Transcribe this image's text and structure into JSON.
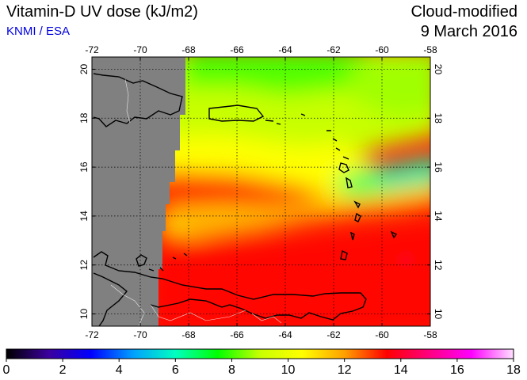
{
  "header": {
    "title": "Vitamin-D UV dose (kJ/m2)",
    "provider": "KNMI / ESA",
    "product": "Cloud-modified",
    "date": "9 March 2016"
  },
  "map": {
    "lon_ticks": [
      "-72",
      "-70",
      "-68",
      "-66",
      "-64",
      "-62",
      "-60",
      "-58"
    ],
    "lat_ticks": [
      "10",
      "12",
      "14",
      "16",
      "18",
      "20"
    ],
    "lon_range": [
      -72,
      -58
    ],
    "lat_range": [
      9.5,
      20.5
    ],
    "grid": "dotted",
    "no_data_color": "#808080",
    "coastline_color": "#000000",
    "border_color": "#ffffff"
  },
  "colorbar": {
    "labels": [
      "0",
      "2",
      "4",
      "6",
      "8",
      "10",
      "12",
      "14",
      "16",
      "18"
    ],
    "range": [
      0,
      18
    ],
    "colors": [
      "#000000",
      "#3b009e",
      "#0000ff",
      "#00a0ff",
      "#00ffc0",
      "#00ff00",
      "#c8ff00",
      "#ffff00",
      "#ffa000",
      "#ff0000",
      "#ff0080",
      "#ff00ff",
      "#ffe0ff"
    ]
  }
}
